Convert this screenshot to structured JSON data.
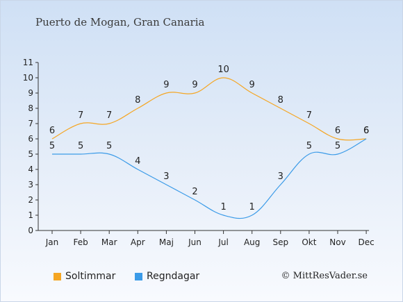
{
  "title": "Puerto de Mogan, Gran Canaria",
  "credit": "© MittResVader.se",
  "chart_data": {
    "type": "line",
    "categories": [
      "Jan",
      "Feb",
      "Mar",
      "Apr",
      "Maj",
      "Jun",
      "Jul",
      "Aug",
      "Sep",
      "Okt",
      "Nov",
      "Dec"
    ],
    "ylim": [
      0,
      11
    ],
    "yticks": [
      0,
      1,
      2,
      3,
      4,
      5,
      6,
      7,
      8,
      9,
      10,
      11
    ],
    "grid": false,
    "legend_position": "bottom-left",
    "series": [
      {
        "name": "Soltimmar",
        "color": "#f5a623",
        "values": [
          6,
          7,
          7,
          8,
          9,
          9,
          10,
          9,
          8,
          7,
          6,
          6
        ]
      },
      {
        "name": "Regndagar",
        "color": "#3b9be8",
        "values": [
          5,
          5,
          5,
          4,
          3,
          2,
          1,
          1,
          3,
          5,
          5,
          6
        ]
      }
    ]
  }
}
